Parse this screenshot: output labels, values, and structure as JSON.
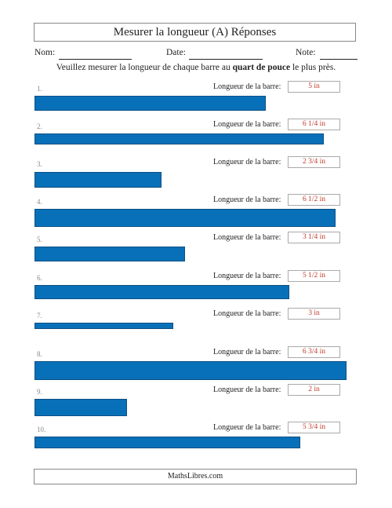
{
  "title": "Mesurer la longueur (A) Réponses",
  "fields": {
    "name": "Nom:",
    "date": "Date:",
    "note": "Note:"
  },
  "instructions": {
    "before": "Veuillez mesurer la longueur de chaque barre au",
    "bold": "quart de pouce",
    "after": "le plus près."
  },
  "bar_label": "Longueur de la barre:",
  "bar_color": "#0870b8",
  "answer_color": "#c0392b",
  "problems": [
    {
      "number": "1.",
      "answer": "5 in",
      "length_in": 5
    },
    {
      "number": "2.",
      "answer": "6 1/4 in",
      "length_in": 6.25
    },
    {
      "number": "3.",
      "answer": "2 3/4 in",
      "length_in": 2.75
    },
    {
      "number": "4.",
      "answer": "6 1/2 in",
      "length_in": 6.5
    },
    {
      "number": "5.",
      "answer": "3 1/4 in",
      "length_in": 3.25
    },
    {
      "number": "6.",
      "answer": "5 1/2 in",
      "length_in": 5.5
    },
    {
      "number": "7.",
      "answer": "3 in",
      "length_in": 3
    },
    {
      "number": "8.",
      "answer": "6 3/4 in",
      "length_in": 6.75
    },
    {
      "number": "9.",
      "answer": "2 in",
      "length_in": 2
    },
    {
      "number": "10.",
      "answer": "5 3/4 in",
      "length_in": 5.75
    }
  ],
  "footer": "MathsLibres.com"
}
